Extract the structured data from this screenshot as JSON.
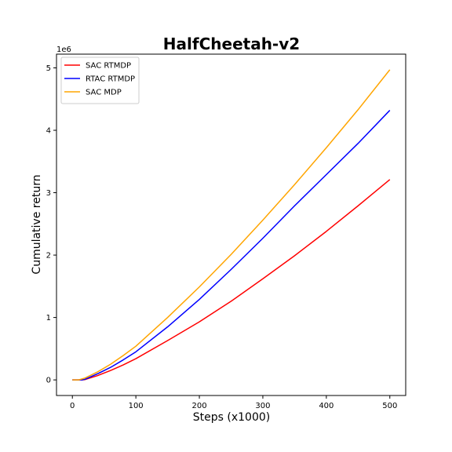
{
  "chart_data": {
    "type": "line",
    "title": "HalfCheetah-v2",
    "xlabel": "Steps (x1000)",
    "ylabel": "Cumulative return",
    "y_offset_label": "1e6",
    "xlim": [
      -25,
      525
    ],
    "ylim": [
      -0.25,
      5.22
    ],
    "xticks": [
      0,
      100,
      200,
      300,
      400,
      500
    ],
    "yticks": [
      0,
      1,
      2,
      3,
      4,
      5
    ],
    "grid": false,
    "legend_position": "top-left",
    "series": [
      {
        "name": "SAC RTMDP",
        "color": "#ff0000",
        "x": [
          0,
          15,
          20,
          40,
          60,
          80,
          100,
          150,
          200,
          250,
          300,
          350,
          400,
          450,
          500
        ],
        "y": [
          0,
          0,
          0.005,
          0.07,
          0.15,
          0.24,
          0.34,
          0.63,
          0.93,
          1.26,
          1.62,
          1.99,
          2.38,
          2.79,
          3.21
        ]
      },
      {
        "name": "RTAC RTMDP",
        "color": "#0000ff",
        "x": [
          0,
          15,
          20,
          40,
          60,
          80,
          100,
          150,
          200,
          250,
          300,
          350,
          400,
          450,
          500
        ],
        "y": [
          0,
          0,
          0.01,
          0.1,
          0.2,
          0.32,
          0.45,
          0.85,
          1.29,
          1.77,
          2.27,
          2.79,
          3.29,
          3.79,
          4.32
        ]
      },
      {
        "name": "SAC MDP",
        "color": "#ffa500",
        "x": [
          0,
          10,
          20,
          40,
          60,
          80,
          100,
          150,
          200,
          250,
          300,
          350,
          400,
          450,
          500
        ],
        "y": [
          0,
          0,
          0.03,
          0.13,
          0.25,
          0.39,
          0.54,
          1.0,
          1.49,
          2.01,
          2.56,
          3.13,
          3.72,
          4.33,
          4.97
        ]
      }
    ]
  }
}
